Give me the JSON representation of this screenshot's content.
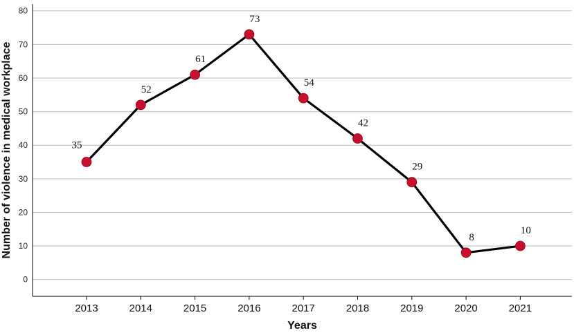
{
  "chart_data": {
    "type": "line",
    "title": "",
    "xlabel": "Years",
    "ylabel": "Number of violence in medical workplace",
    "categories": [
      "2013",
      "2014",
      "2015",
      "2016",
      "2017",
      "2018",
      "2019",
      "2020",
      "2021"
    ],
    "series": [
      {
        "values": [
          35,
          52,
          61,
          73,
          54,
          42,
          29,
          8,
          10
        ]
      }
    ],
    "ylim": [
      -5,
      82
    ],
    "yticks": [
      0,
      10,
      20,
      30,
      40,
      50,
      60,
      70,
      80
    ],
    "grid": true,
    "legend": "none",
    "colors": {
      "line": "#000000",
      "marker": "#c8102e",
      "grid": "#bdbdbd",
      "axis": "#000000"
    }
  }
}
